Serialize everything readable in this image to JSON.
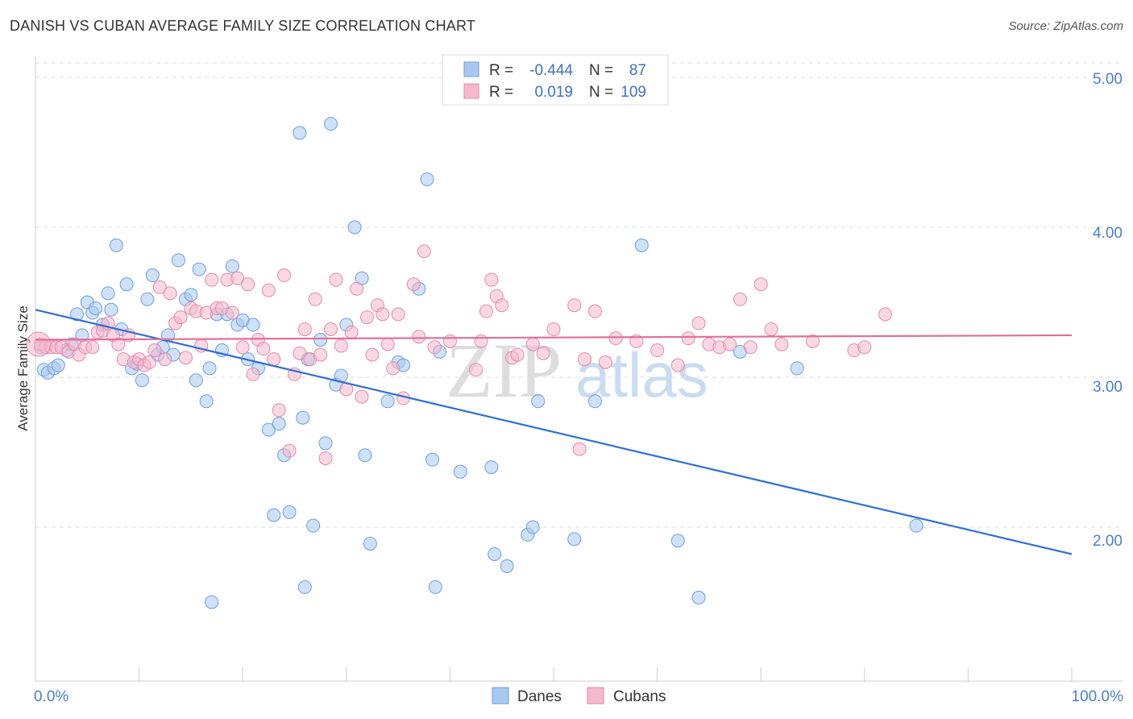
{
  "header": {
    "title": "DANISH VS CUBAN AVERAGE FAMILY SIZE CORRELATION CHART",
    "source": "Source: ZipAtlas.com"
  },
  "watermark": {
    "zip": "ZIP",
    "atlas": "atlas"
  },
  "stats_legend": {
    "rows": [
      {
        "r_label": "R =",
        "r_value": "-0.444",
        "n_label": "N =",
        "n_value": "87",
        "color": "#a8c8f0"
      },
      {
        "r_label": "R =",
        "r_value": "0.019",
        "n_label": "N =",
        "n_value": "109",
        "color": "#f5b8cc"
      }
    ]
  },
  "bottom_legend": {
    "items": [
      {
        "label": "Danes",
        "color": "#a8c8f0"
      },
      {
        "label": "Cubans",
        "color": "#f5b8cc"
      }
    ]
  },
  "chart_data": {
    "type": "scatter",
    "title": "DANISH VS CUBAN AVERAGE FAMILY SIZE CORRELATION CHART",
    "xlabel": "",
    "ylabel": "Average Family Size",
    "xlim": [
      0,
      100
    ],
    "ylim": [
      1.0,
      5.1
    ],
    "x_tick_labels": [
      "0.0%",
      "100.0%"
    ],
    "y_ticks": [
      2.0,
      3.0,
      4.0,
      5.0
    ],
    "y_tick_labels": [
      "2.00",
      "3.00",
      "4.00",
      "5.00"
    ],
    "grid": true,
    "legend_position": "top-center",
    "series": [
      {
        "name": "Danes",
        "color": "#a8c8f0",
        "stroke": "#6e9fdc",
        "trend": {
          "x": [
            0,
            100
          ],
          "y": [
            3.45,
            1.82
          ],
          "color": "#2f6fd0"
        },
        "points": [
          [
            0.5,
            3.2
          ],
          [
            0.8,
            3.05
          ],
          [
            1.2,
            3.03
          ],
          [
            1.8,
            3.06
          ],
          [
            2.2,
            3.08
          ],
          [
            3.0,
            3.18
          ],
          [
            3.5,
            3.22
          ],
          [
            4.0,
            3.42
          ],
          [
            4.5,
            3.28
          ],
          [
            5.0,
            3.5
          ],
          [
            5.5,
            3.43
          ],
          [
            5.8,
            3.46
          ],
          [
            6.5,
            3.35
          ],
          [
            7.0,
            3.56
          ],
          [
            7.3,
            3.45
          ],
          [
            7.8,
            3.88
          ],
          [
            8.3,
            3.32
          ],
          [
            8.8,
            3.62
          ],
          [
            9.3,
            3.06
          ],
          [
            9.8,
            3.09
          ],
          [
            10.3,
            2.98
          ],
          [
            10.8,
            3.52
          ],
          [
            11.3,
            3.68
          ],
          [
            11.8,
            3.15
          ],
          [
            12.3,
            3.2
          ],
          [
            12.8,
            3.28
          ],
          [
            13.3,
            3.15
          ],
          [
            13.8,
            3.78
          ],
          [
            14.5,
            3.52
          ],
          [
            15.0,
            3.55
          ],
          [
            15.5,
            2.98
          ],
          [
            15.8,
            3.72
          ],
          [
            16.5,
            2.84
          ],
          [
            16.8,
            3.06
          ],
          [
            17.5,
            3.42
          ],
          [
            18.0,
            3.18
          ],
          [
            18.5,
            3.42
          ],
          [
            19.0,
            3.74
          ],
          [
            19.5,
            3.35
          ],
          [
            20.0,
            3.38
          ],
          [
            20.5,
            3.12
          ],
          [
            21.0,
            3.35
          ],
          [
            21.5,
            3.06
          ],
          [
            22.5,
            2.65
          ],
          [
            23.0,
            2.08
          ],
          [
            23.5,
            2.69
          ],
          [
            24.0,
            2.48
          ],
          [
            24.5,
            2.1
          ],
          [
            25.5,
            4.63
          ],
          [
            25.8,
            2.73
          ],
          [
            26.3,
            3.12
          ],
          [
            26.8,
            2.01
          ],
          [
            27.5,
            3.25
          ],
          [
            28.0,
            2.56
          ],
          [
            28.5,
            4.69
          ],
          [
            29.0,
            2.95
          ],
          [
            29.5,
            3.01
          ],
          [
            30.0,
            3.35
          ],
          [
            30.8,
            4.0
          ],
          [
            31.5,
            3.66
          ],
          [
            31.8,
            2.48
          ],
          [
            32.3,
            1.89
          ],
          [
            34.0,
            2.84
          ],
          [
            35.0,
            3.1
          ],
          [
            35.5,
            3.08
          ],
          [
            37.0,
            3.59
          ],
          [
            37.8,
            4.32
          ],
          [
            38.3,
            2.45
          ],
          [
            38.6,
            1.6
          ],
          [
            39.0,
            3.17
          ],
          [
            41.0,
            2.37
          ],
          [
            44.0,
            2.4
          ],
          [
            44.3,
            1.82
          ],
          [
            45.5,
            1.74
          ],
          [
            47.5,
            1.95
          ],
          [
            48.0,
            2.0
          ],
          [
            48.5,
            2.84
          ],
          [
            52.0,
            1.92
          ],
          [
            54.0,
            2.84
          ],
          [
            58.5,
            3.88
          ],
          [
            62.0,
            1.91
          ],
          [
            64.0,
            1.53
          ],
          [
            68.0,
            3.17
          ],
          [
            73.5,
            3.06
          ],
          [
            85.0,
            2.01
          ],
          [
            26.0,
            1.6
          ],
          [
            17.0,
            1.5
          ]
        ]
      },
      {
        "name": "Cubans",
        "color": "#f5b8cc",
        "stroke": "#e58aa8",
        "trend": {
          "x": [
            0,
            100
          ],
          "y": [
            3.25,
            3.28
          ],
          "color": "#e0709a"
        },
        "points": [
          [
            0.5,
            3.22
          ],
          [
            1.0,
            3.2
          ],
          [
            1.5,
            3.2
          ],
          [
            2.0,
            3.2
          ],
          [
            2.5,
            3.2
          ],
          [
            3.2,
            3.17
          ],
          [
            3.8,
            3.22
          ],
          [
            4.2,
            3.15
          ],
          [
            4.8,
            3.2
          ],
          [
            5.5,
            3.2
          ],
          [
            6.0,
            3.3
          ],
          [
            6.5,
            3.31
          ],
          [
            7.0,
            3.36
          ],
          [
            7.5,
            3.28
          ],
          [
            8.0,
            3.22
          ],
          [
            8.5,
            3.12
          ],
          [
            9.0,
            3.28
          ],
          [
            9.5,
            3.1
          ],
          [
            10.0,
            3.12
          ],
          [
            10.5,
            3.08
          ],
          [
            11.0,
            3.1
          ],
          [
            11.5,
            3.18
          ],
          [
            12.0,
            3.6
          ],
          [
            12.5,
            3.12
          ],
          [
            13.0,
            3.56
          ],
          [
            13.5,
            3.36
          ],
          [
            14.0,
            3.4
          ],
          [
            14.5,
            3.13
          ],
          [
            15.0,
            3.46
          ],
          [
            15.5,
            3.44
          ],
          [
            16.0,
            3.21
          ],
          [
            16.5,
            3.43
          ],
          [
            17.0,
            3.65
          ],
          [
            17.5,
            3.46
          ],
          [
            18.0,
            3.46
          ],
          [
            18.5,
            3.65
          ],
          [
            19.0,
            3.43
          ],
          [
            19.5,
            3.66
          ],
          [
            20.0,
            3.2
          ],
          [
            20.5,
            3.62
          ],
          [
            21.0,
            3.02
          ],
          [
            21.5,
            3.25
          ],
          [
            22.0,
            3.19
          ],
          [
            22.5,
            3.58
          ],
          [
            23.0,
            3.12
          ],
          [
            23.5,
            2.78
          ],
          [
            24.0,
            3.68
          ],
          [
            24.5,
            2.51
          ],
          [
            25.0,
            3.02
          ],
          [
            25.5,
            3.16
          ],
          [
            26.0,
            3.32
          ],
          [
            26.5,
            3.12
          ],
          [
            27.0,
            3.52
          ],
          [
            27.5,
            3.15
          ],
          [
            28.0,
            2.46
          ],
          [
            28.5,
            3.32
          ],
          [
            29.0,
            3.65
          ],
          [
            29.5,
            3.21
          ],
          [
            30.0,
            2.92
          ],
          [
            30.5,
            3.3
          ],
          [
            31.0,
            3.59
          ],
          [
            31.5,
            2.87
          ],
          [
            32.0,
            3.4
          ],
          [
            32.5,
            3.15
          ],
          [
            33.0,
            3.48
          ],
          [
            33.5,
            3.42
          ],
          [
            34.0,
            3.22
          ],
          [
            34.5,
            3.06
          ],
          [
            35.0,
            3.42
          ],
          [
            35.5,
            2.86
          ],
          [
            36.5,
            3.62
          ],
          [
            37.0,
            3.27
          ],
          [
            37.5,
            3.84
          ],
          [
            38.5,
            3.2
          ],
          [
            42.5,
            3.05
          ],
          [
            43.0,
            3.24
          ],
          [
            43.5,
            3.44
          ],
          [
            44.0,
            3.65
          ],
          [
            44.5,
            3.54
          ],
          [
            45.0,
            3.48
          ],
          [
            46.0,
            3.13
          ],
          [
            46.5,
            3.15
          ],
          [
            48.0,
            3.22
          ],
          [
            49.0,
            3.16
          ],
          [
            50.0,
            3.32
          ],
          [
            52.0,
            3.48
          ],
          [
            53.0,
            3.12
          ],
          [
            54.0,
            3.44
          ],
          [
            55.0,
            3.1
          ],
          [
            56.0,
            3.26
          ],
          [
            58.0,
            3.24
          ],
          [
            60.0,
            3.18
          ],
          [
            62.0,
            3.08
          ],
          [
            63.0,
            3.26
          ],
          [
            64.0,
            3.36
          ],
          [
            65.0,
            3.22
          ],
          [
            66.0,
            3.2
          ],
          [
            67.0,
            3.22
          ],
          [
            68.0,
            3.52
          ],
          [
            69.0,
            3.2
          ],
          [
            70.0,
            3.62
          ],
          [
            71.0,
            3.32
          ],
          [
            72.0,
            3.22
          ],
          [
            75.0,
            3.24
          ],
          [
            79.0,
            3.18
          ],
          [
            80.0,
            3.2
          ],
          [
            82.0,
            3.42
          ],
          [
            52.5,
            2.52
          ],
          [
            40.0,
            3.24
          ]
        ]
      }
    ]
  }
}
